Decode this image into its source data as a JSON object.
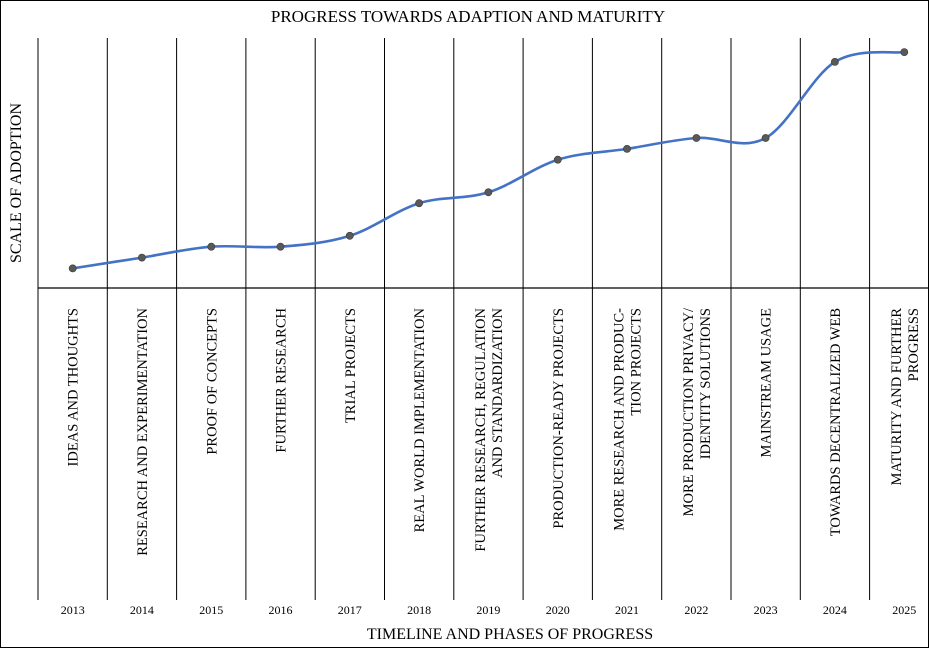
{
  "chart_data": {
    "type": "line",
    "title": "PROGRESS TOWARDS ADAPTION AND MATURITY",
    "xlabel": "TIMELINE AND PHASES OF PROGRESS",
    "ylabel": "SCALE OF ADOPTION",
    "categories": [
      "2013",
      "2014",
      "2015",
      "2016",
      "2017",
      "2018",
      "2019",
      "2020",
      "2021",
      "2022",
      "2023",
      "2024",
      "2025"
    ],
    "phases": [
      [
        "IDEAS AND THOUGHTS"
      ],
      [
        "RESEARCH AND EXPERIMENTATION"
      ],
      [
        "PROOF OF CONCEPTS"
      ],
      [
        "FURTHER RESEARCH"
      ],
      [
        "TRIAL PROJECTS"
      ],
      [
        "REAL WORLD IMPLEMENTATION"
      ],
      [
        "FURTHER RESEARCH, REGULATION",
        "AND STANDARDIZATION"
      ],
      [
        "PRODUCTION-READY PROJECTS"
      ],
      [
        "MORE RESEARCH AND PRODUC-",
        "TION PROJECTS"
      ],
      [
        "MORE PRODUCTION PRIVACY/",
        "IDENTITY SOLUTIONS"
      ],
      [
        "MAINSTREAM USAGE"
      ],
      [
        "TOWARDS DECENTRALIZED WEB"
      ],
      [
        "MATURITY AND FURTHER",
        "PROGRESS"
      ]
    ],
    "series": [
      {
        "values": [
          0.8,
          1.8,
          2.8,
          2.8,
          3.8,
          6.8,
          7.8,
          10.8,
          11.8,
          12.8,
          12.8,
          19.8,
          20.7
        ]
      }
    ],
    "ylim": [
      -1,
      22
    ],
    "grid": false,
    "legend": "none",
    "colors": {
      "line": "#4472C4",
      "marker": "#595959",
      "axis": "#000000",
      "frame": "#000000"
    }
  }
}
